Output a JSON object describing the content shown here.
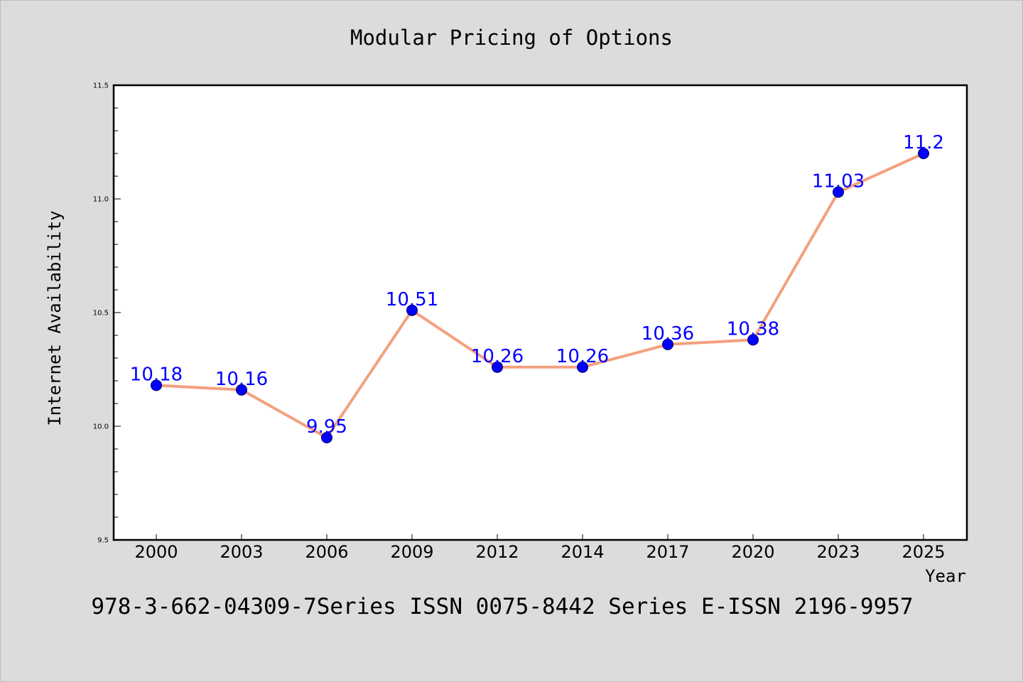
{
  "colors": {
    "background": "#dcdcdc",
    "plot_background": "#ffffff",
    "line": "#f4a07e",
    "marker": "#0000ff",
    "data_label": "#0000ff"
  },
  "chart_data": {
    "type": "line",
    "title": "Modular Pricing of Options",
    "xlabel": "Year",
    "ylabel": "Internet Availability",
    "categories": [
      "2000",
      "2003",
      "2006",
      "2009",
      "2012",
      "2014",
      "2017",
      "2020",
      "2023",
      "2025"
    ],
    "series": [
      {
        "values": [
          10.18,
          10.16,
          9.95,
          10.51,
          10.26,
          10.26,
          10.36,
          10.38,
          11.03,
          11.2
        ],
        "data_labels": [
          "10.18",
          "10.16",
          "9.95",
          "10.51",
          "10.26",
          "10.26",
          "10.36",
          "10.38",
          "11.03",
          "11.2"
        ]
      }
    ],
    "ylim": [
      9.5,
      11.5
    ],
    "yticks": [
      "9.5",
      "10.0",
      "10.5",
      "11.0",
      "11.5"
    ],
    "grid": false,
    "legend": "none"
  },
  "footer": {
    "text": "978-3-662-04309-7Series ISSN 0075-8442 Series E-ISSN 2196-9957"
  }
}
